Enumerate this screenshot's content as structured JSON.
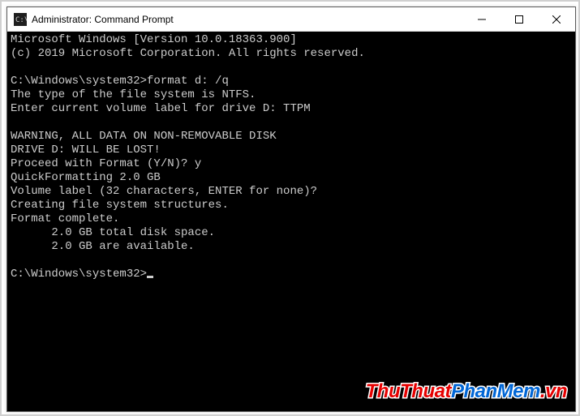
{
  "window": {
    "title": "Administrator: Command Prompt",
    "titlebar_bg": "#ffffff",
    "border_color": "#5a5a5a"
  },
  "terminal": {
    "bg": "#000000",
    "fg": "#cccccc",
    "font": "Consolas",
    "font_size": 14,
    "lines": [
      "Microsoft Windows [Version 10.0.18363.900]",
      "(c) 2019 Microsoft Corporation. All rights reserved.",
      "",
      "C:\\Windows\\system32>format d: /q",
      "The type of the file system is NTFS.",
      "Enter current volume label for drive D: TTPM",
      "",
      "WARNING, ALL DATA ON NON-REMOVABLE DISK",
      "DRIVE D: WILL BE LOST!",
      "Proceed with Format (Y/N)? y",
      "QuickFormatting 2.0 GB",
      "Volume label (32 characters, ENTER for none)?",
      "Creating file system structures.",
      "Format complete.",
      "      2.0 GB total disk space.",
      "      2.0 GB are available.",
      ""
    ],
    "prompt": "C:\\Windows\\system32>"
  },
  "watermark": {
    "parts": [
      {
        "text": "ThuThuat",
        "color": "#e60000"
      },
      {
        "text": "PhanMem",
        "color": "#0066d6"
      },
      {
        "text": ".vn",
        "color": "#e60000"
      }
    ]
  }
}
